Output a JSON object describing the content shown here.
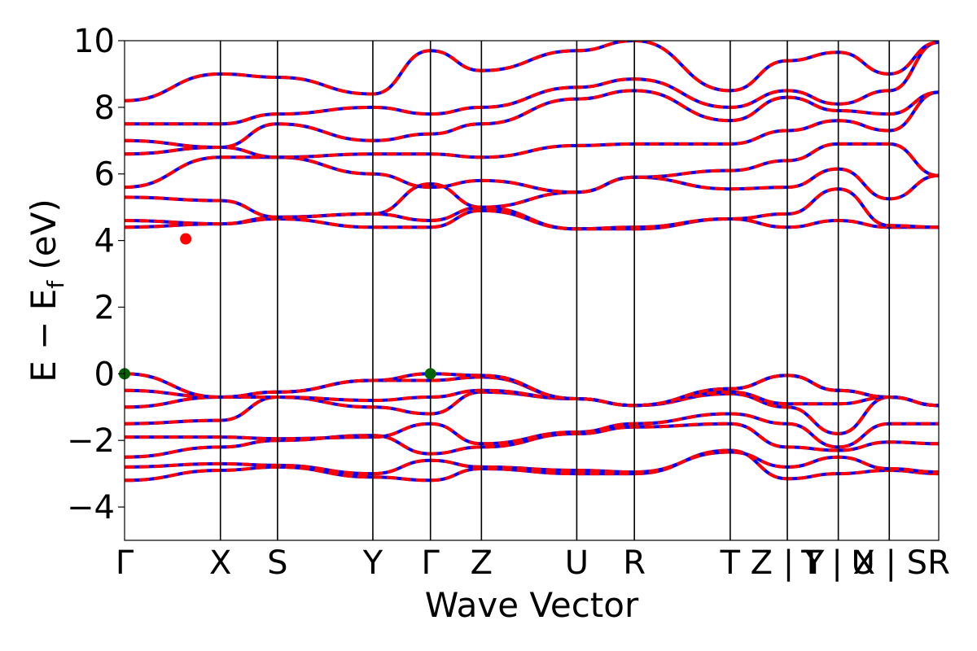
{
  "chart_data": {
    "type": "line",
    "title": "",
    "xlabel": "Wave Vector",
    "ylabel": "E − E",
    "ylabel_sub": "f",
    "ylabel_unit": " (eV)",
    "ylim": [
      -5,
      10
    ],
    "yticks": [
      -4,
      -2,
      0,
      2,
      4,
      6,
      8,
      10
    ],
    "ytick_labels": [
      "−4",
      "−2",
      "0",
      "2",
      "4",
      "6",
      "8",
      "10"
    ],
    "xlim": [
      0,
      15.97
    ],
    "kpoints": [
      {
        "label": "Γ",
        "x": 0.0
      },
      {
        "label": "X",
        "x": 1.88
      },
      {
        "label": "S",
        "x": 3.0
      },
      {
        "label": "Y",
        "x": 4.87
      },
      {
        "label": "Γ",
        "x": 6.0
      },
      {
        "label": "Z",
        "x": 7.0
      },
      {
        "label": "U",
        "x": 8.87
      },
      {
        "label": "R",
        "x": 10.0
      },
      {
        "label": "T",
        "x": 11.88
      },
      {
        "label": "Z | Y",
        "x": 13.0
      },
      {
        "label": "T | X",
        "x": 14.0
      },
      {
        "label": "U | S",
        "x": 15.0
      },
      {
        "label": "R",
        "x": 15.97
      }
    ],
    "grid": false,
    "line_colors": {
      "spin_up": "#0000ff",
      "spin_down": "#ff0000"
    },
    "series_style": "red dashed over blue, overlapping",
    "band_points_x": [
      0,
      1.88,
      3.0,
      4.87,
      6.0,
      7.0,
      8.87,
      10.0,
      11.88,
      13.0,
      14.0,
      15.0,
      15.97
    ],
    "bands": [
      {
        "name": "",
        "values": [
          -3.2,
          -2.9,
          -2.8,
          -3.1,
          -3.2,
          -2.85,
          -3.0,
          -3.0,
          -2.3,
          -3.15,
          -3.0,
          -2.9,
          -3.0
        ]
      },
      {
        "name": "",
        "values": [
          -2.8,
          -2.7,
          -2.75,
          -3.0,
          -2.6,
          -2.8,
          -2.9,
          -2.95,
          -2.35,
          -2.8,
          -2.5,
          -2.85,
          -2.95
        ]
      },
      {
        "name": "",
        "values": [
          -2.5,
          -2.2,
          -2.0,
          -1.85,
          -2.4,
          -2.2,
          -1.8,
          -1.6,
          -1.5,
          -2.2,
          -2.3,
          -2.05,
          -2.1
        ]
      },
      {
        "name": "",
        "values": [
          -1.9,
          -1.9,
          -1.95,
          -1.9,
          -1.5,
          -2.1,
          -1.75,
          -1.5,
          -1.2,
          -1.5,
          -2.2,
          -1.5,
          -1.5
        ]
      },
      {
        "name": "",
        "values": [
          -1.5,
          -1.4,
          -0.7,
          -1.0,
          -1.2,
          -0.55,
          -0.75,
          -0.95,
          -0.6,
          -1.0,
          -1.8,
          -0.7,
          -0.95
        ]
      },
      {
        "name": "",
        "values": [
          -1.0,
          -0.7,
          -0.7,
          -0.8,
          -0.7,
          -0.5,
          -0.75,
          -0.95,
          -0.55,
          -0.9,
          -0.9,
          -0.7,
          -0.95
        ]
      },
      {
        "name": "",
        "values": [
          -0.5,
          -0.7,
          -0.55,
          -0.2,
          -0.2,
          -0.1,
          -0.75,
          -0.95,
          -0.45,
          -0.05,
          -0.5,
          -0.7,
          -0.95
        ]
      },
      {
        "name": "",
        "values": [
          0.0,
          -0.7,
          -0.55,
          -0.2,
          0.0,
          -0.05,
          -0.75,
          -0.95,
          -0.45,
          -0.05,
          -0.5,
          -0.7,
          -0.95
        ]
      },
      {
        "name": "",
        "values": [
          4.4,
          4.5,
          4.65,
          4.4,
          4.4,
          4.9,
          4.35,
          4.35,
          4.65,
          4.4,
          4.6,
          4.4,
          4.4
        ]
      },
      {
        "name": "",
        "values": [
          4.6,
          4.5,
          4.7,
          4.8,
          4.6,
          5.0,
          4.35,
          4.4,
          4.65,
          4.8,
          5.55,
          4.45,
          4.4
        ]
      },
      {
        "name": "",
        "values": [
          5.3,
          5.2,
          4.7,
          4.8,
          5.7,
          5.0,
          5.45,
          5.9,
          5.55,
          5.6,
          6.15,
          5.25,
          5.95
        ]
      },
      {
        "name": "",
        "values": [
          5.6,
          6.5,
          6.5,
          6.0,
          5.6,
          5.8,
          5.45,
          5.9,
          6.1,
          6.4,
          6.9,
          6.9,
          5.95
        ]
      },
      {
        "name": "",
        "values": [
          6.6,
          6.8,
          6.5,
          6.6,
          6.6,
          6.5,
          6.85,
          6.9,
          6.9,
          7.3,
          7.6,
          7.3,
          8.45
        ]
      },
      {
        "name": "",
        "values": [
          7.0,
          6.8,
          7.5,
          7.0,
          7.2,
          7.5,
          8.25,
          8.5,
          7.6,
          8.3,
          7.9,
          7.8,
          8.45
        ]
      },
      {
        "name": "",
        "values": [
          7.5,
          7.5,
          7.8,
          8.0,
          7.8,
          8.0,
          8.6,
          8.85,
          8.0,
          8.5,
          8.1,
          8.5,
          9.95
        ]
      },
      {
        "name": "",
        "values": [
          8.2,
          9.0,
          8.9,
          8.4,
          9.7,
          9.1,
          9.7,
          10.0,
          8.5,
          9.4,
          9.65,
          9.0,
          9.95
        ]
      }
    ],
    "markers": [
      {
        "name": "CBM",
        "x": 1.2,
        "y": 4.05,
        "color": "#ff0000"
      },
      {
        "name": "VBM",
        "x": 0.0,
        "y": 0.0,
        "color": "#006400"
      },
      {
        "name": "VBM",
        "x": 6.0,
        "y": 0.0,
        "color": "#006400"
      }
    ]
  }
}
